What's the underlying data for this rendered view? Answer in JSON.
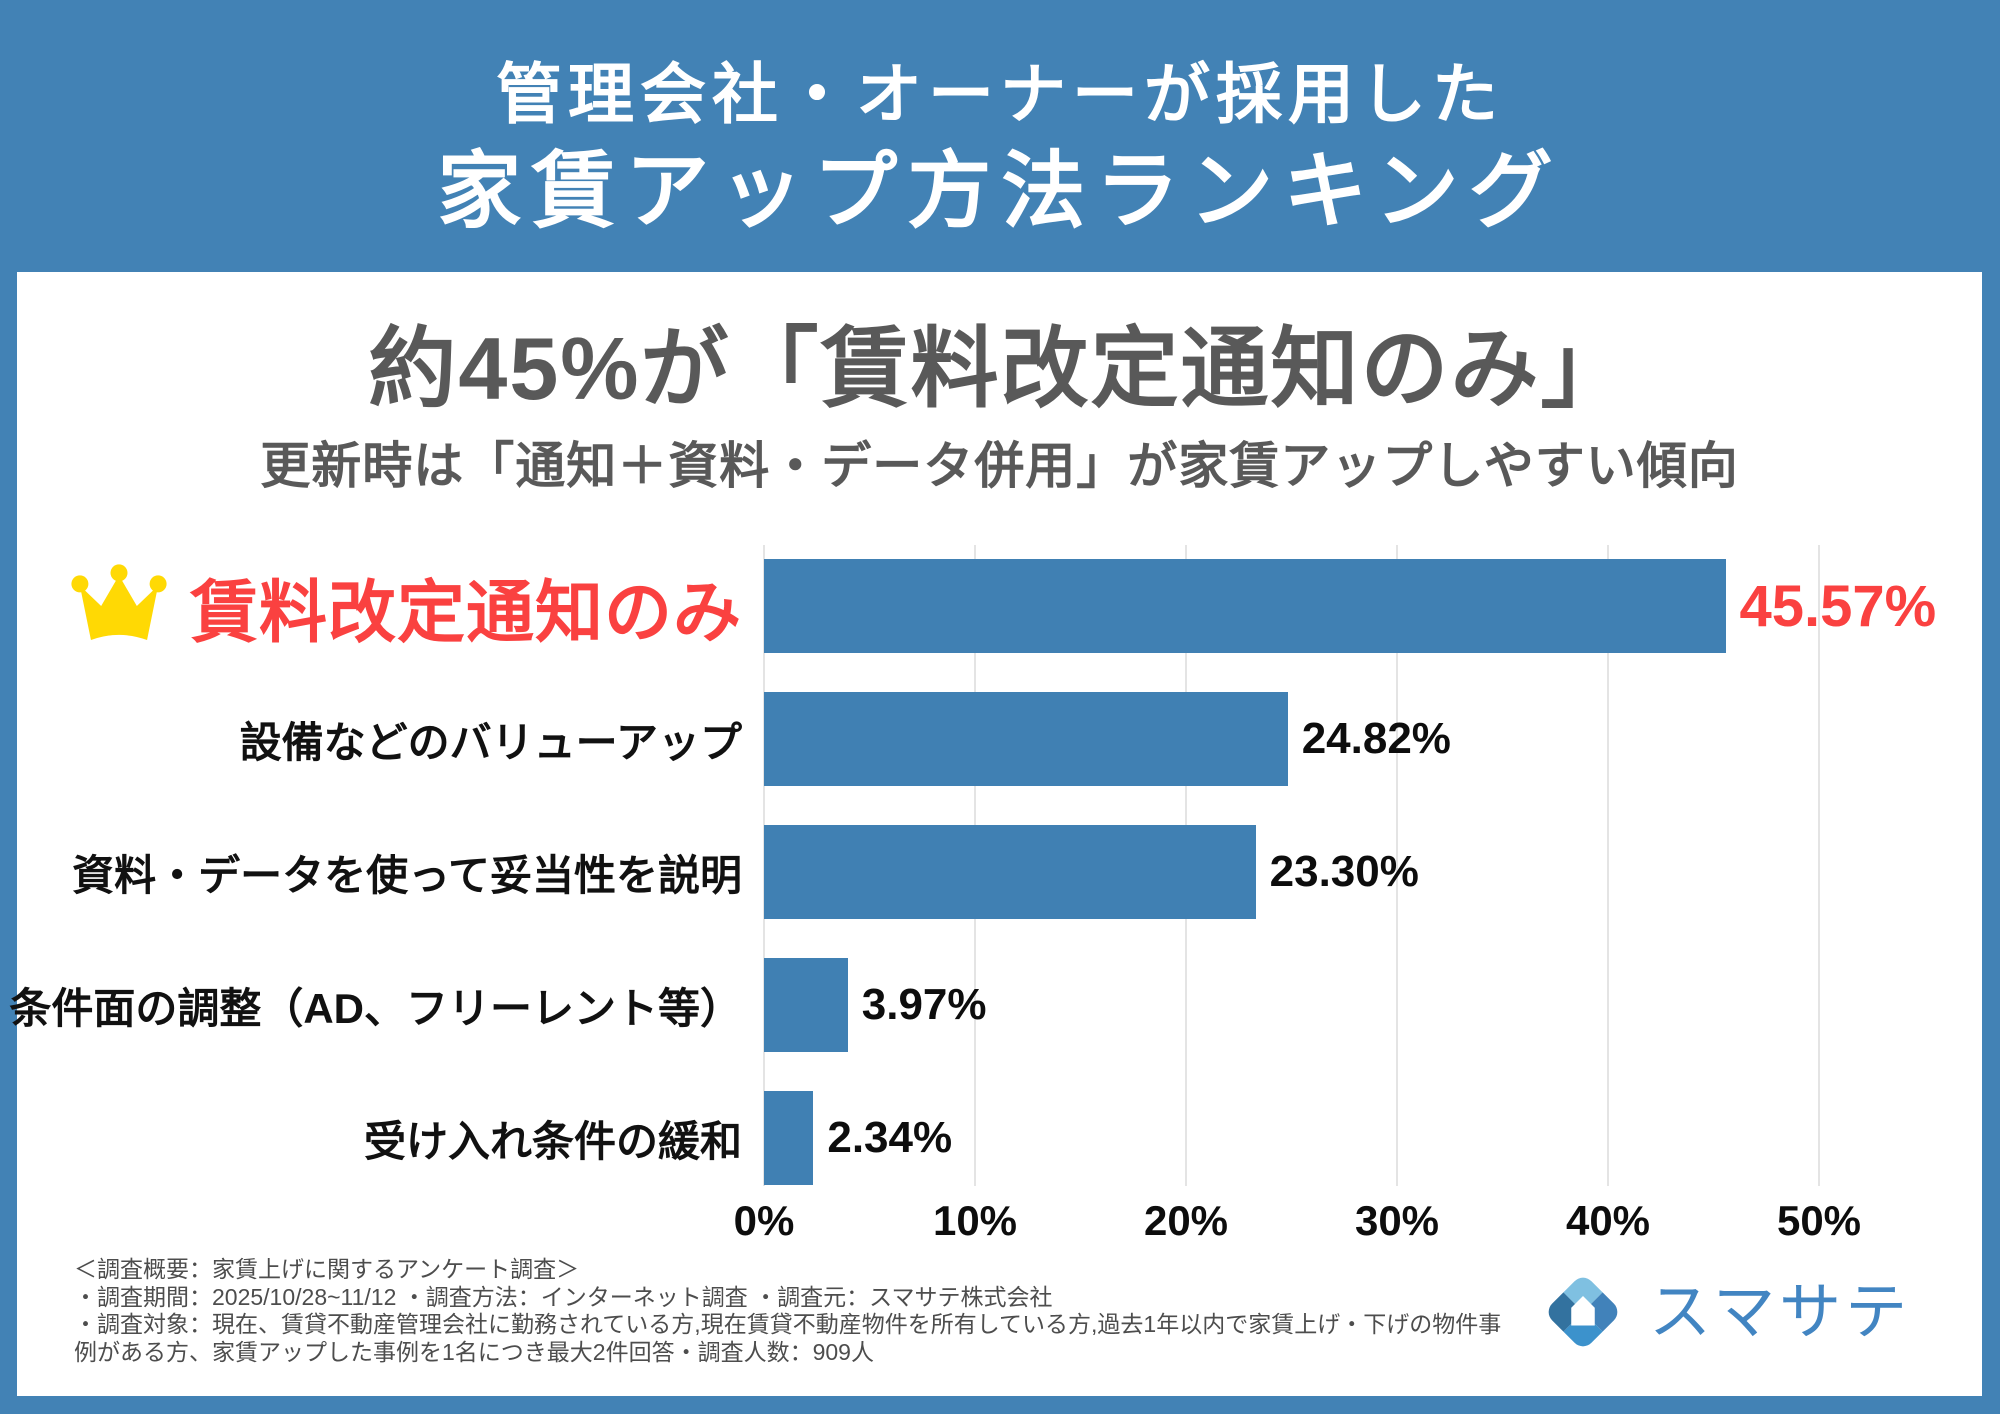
{
  "header": {
    "title_line1": "管理会社・オーナーが採用した",
    "title_line2": "家賃アップ方法ランキング"
  },
  "card": {
    "headline": "約45%が「賃料改定通知のみ」",
    "subtitle": "更新時は「通知＋資料・データ併用」が家賃アップしやすい傾向"
  },
  "chart_data": {
    "type": "bar",
    "orientation": "horizontal",
    "title": "家賃アップ方法ランキング",
    "categories": [
      "賃料改定通知のみ",
      "設備などのバリューアップ",
      "資料・データを使って妥当性を説明",
      "条件面の調整（AD、フリーレント等）",
      "受け入れ条件の緩和"
    ],
    "values": [
      45.57,
      24.82,
      23.3,
      3.97,
      2.34
    ],
    "value_labels": [
      "45.57%",
      "24.82%",
      "23.30%",
      "3.97%",
      "2.34%"
    ],
    "x_ticks": [
      "0%",
      "10%",
      "20%",
      "30%",
      "40%",
      "50%"
    ],
    "xlim": [
      0,
      50
    ],
    "grid": true,
    "highlight_index": 0,
    "bar_color": "#4080b3",
    "highlight_color": "#fa4140",
    "crown_color": "#ffd904"
  },
  "footer": {
    "line1": "＜調査概要：家賃上げに関するアンケート調査＞",
    "line2": "・調査期間：2025/10/28~11/12 ・調査方法：インターネット調査 ・調査元：スマサテ株式会社",
    "line3": "・調査対象：現在、賃貸不動産管理会社に勤務されている方,現在賃貸不動産物件を所有している方,過去1年以内で家賃上げ・下げの物件事例がある方、家賃アップした事例を1名につき最大2件回答・調査人数：909人"
  },
  "logo": {
    "text": "スマサテ"
  },
  "colors": {
    "frame_blue": "#4282b5",
    "bar_blue": "#4080b3",
    "headline_gray": "#595959",
    "accent_red": "#fa4140",
    "gridline": "#e4e4e4"
  }
}
